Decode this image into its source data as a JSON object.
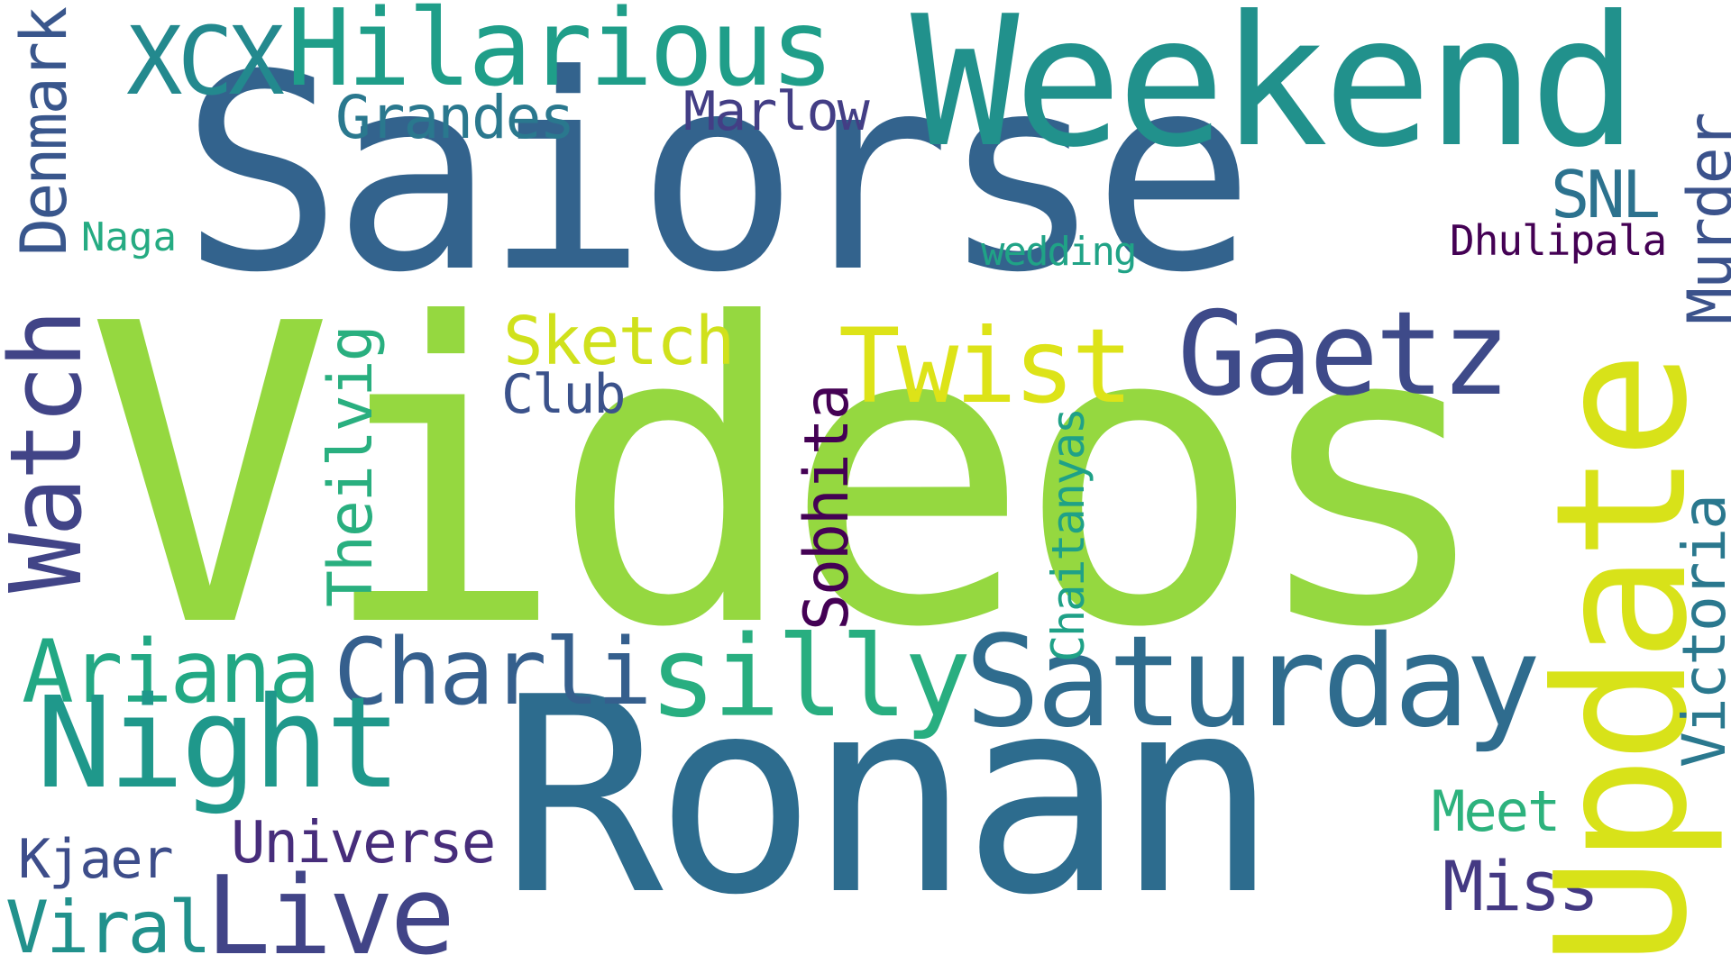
{
  "words": {
    "videos": {
      "text": "Videos",
      "color": "#95d840"
    },
    "saiorse": {
      "text": "Saiorse",
      "color": "#33638d"
    },
    "ronan": {
      "text": "Ronan",
      "color": "#2d6c8e"
    },
    "weekend": {
      "text": "Weekend",
      "color": "#21918c"
    },
    "update": {
      "text": "Update",
      "color": "#d8e219"
    },
    "hilarious": {
      "text": "Hilarious",
      "color": "#1f9e89"
    },
    "xcx": {
      "text": "XCX",
      "color": "#23898e"
    },
    "grandes": {
      "text": "Grandes",
      "color": "#2a788e"
    },
    "marlow": {
      "text": "Marlow",
      "color": "#433e85"
    },
    "denmark": {
      "text": "Denmark",
      "color": "#39568c"
    },
    "naga": {
      "text": "Naga",
      "color": "#25ab82"
    },
    "watch": {
      "text": "Watch",
      "color": "#414487"
    },
    "wedding": {
      "text": "wedding",
      "color": "#20a386"
    },
    "snl": {
      "text": "SNL",
      "color": "#2c728e"
    },
    "dhulipala": {
      "text": "Dhulipala",
      "color": "#440154"
    },
    "murder": {
      "text": "Murder",
      "color": "#3b528b"
    },
    "sketch": {
      "text": "Sketch",
      "color": "#d0e11c"
    },
    "twist": {
      "text": "Twist",
      "color": "#dde318"
    },
    "gaetz": {
      "text": "Gaetz",
      "color": "#3e4a89"
    },
    "club": {
      "text": "Club",
      "color": "#3b528b"
    },
    "theilvig": {
      "text": "Theilvig",
      "color": "#29af7f"
    },
    "sobhita": {
      "text": "Sobhita",
      "color": "#440154"
    },
    "chaitanyas": {
      "text": "Chaitanyas",
      "color": "#1fa187"
    },
    "victoria": {
      "text": "Victoria",
      "color": "#2a788e"
    },
    "ariana": {
      "text": "Ariana",
      "color": "#22a884"
    },
    "charli": {
      "text": "Charli",
      "color": "#355f8d"
    },
    "silly": {
      "text": "silly",
      "color": "#28ae80"
    },
    "saturday": {
      "text": "Saturday",
      "color": "#2f6c8e"
    },
    "night": {
      "text": "Night",
      "color": "#1f988b"
    },
    "meet": {
      "text": "Meet",
      "color": "#2db27d"
    },
    "miss": {
      "text": "Miss",
      "color": "#443983"
    },
    "universe": {
      "text": "Universe",
      "color": "#472d7b"
    },
    "kjaer": {
      "text": "Kjaer",
      "color": "#3d4d8a"
    },
    "live": {
      "text": "Live",
      "color": "#414487"
    },
    "viral": {
      "text": "Viral",
      "color": "#21918c"
    }
  }
}
